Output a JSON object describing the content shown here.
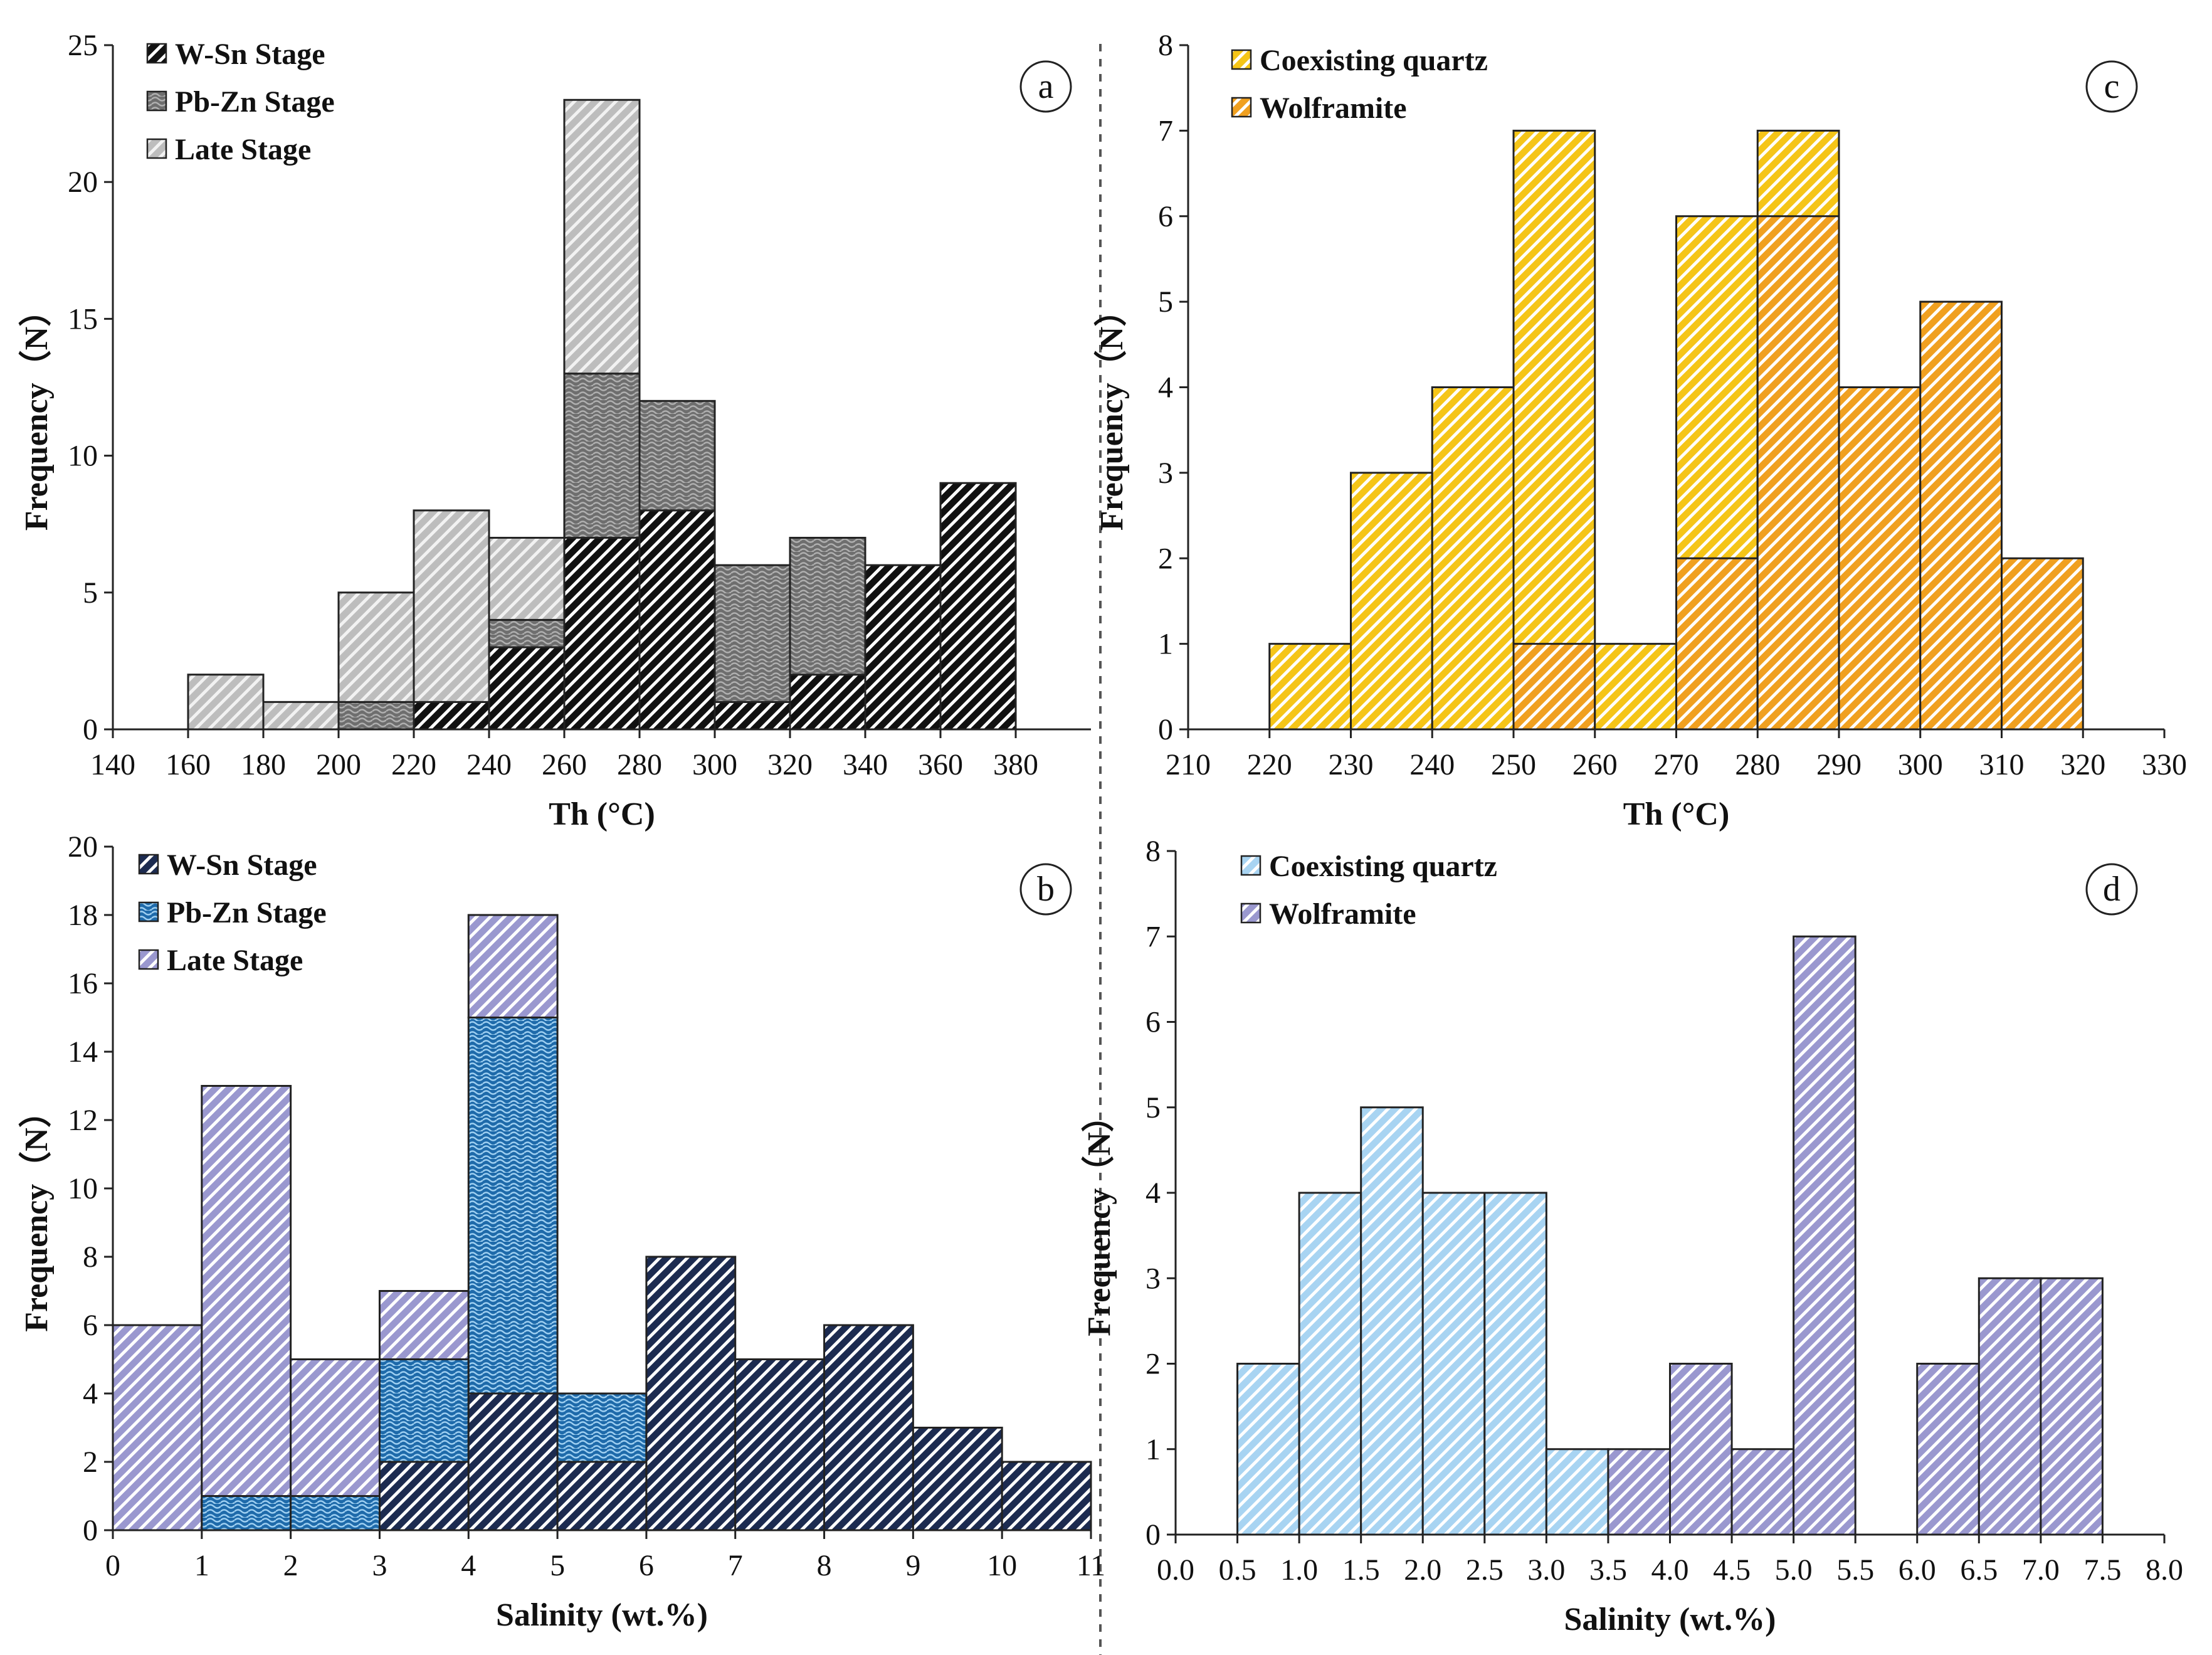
{
  "figure": {
    "divider": "dashed vertical separator"
  },
  "chart_data": [
    {
      "id": "a",
      "type": "bar",
      "stacked": true,
      "panel_label": "a",
      "xlabel": "Th (°C)",
      "ylabel": "Frequency（N）",
      "xlim": [
        140,
        400
      ],
      "ylim": [
        0,
        25
      ],
      "xticks": [
        140,
        160,
        180,
        200,
        220,
        240,
        260,
        280,
        300,
        320,
        340,
        360,
        380
      ],
      "yticks": [
        0,
        5,
        10,
        15,
        20,
        25
      ],
      "bin_width": 20,
      "bin_starts": [
        160,
        180,
        200,
        220,
        240,
        260,
        280,
        300,
        320,
        340,
        360
      ],
      "series": [
        {
          "name": "W-Sn Stage",
          "values": [
            0,
            0,
            0,
            1,
            3,
            7,
            8,
            1,
            2,
            6,
            9
          ],
          "color": "#111111",
          "stripe": "#ffffff",
          "pattern": "diag"
        },
        {
          "name": "Pb-Zn Stage",
          "values": [
            0,
            0,
            1,
            0,
            1,
            6,
            4,
            5,
            5,
            0,
            0
          ],
          "color": "#6e6e6e",
          "stripe": "#b0b0b0",
          "pattern": "wave"
        },
        {
          "name": "Late Stage",
          "values": [
            2,
            1,
            4,
            7,
            3,
            10,
            0,
            0,
            0,
            0,
            0
          ],
          "color": "#bdbdbd",
          "stripe": "#f2f2f2",
          "pattern": "diag"
        }
      ],
      "legend_position": "top-left"
    },
    {
      "id": "b",
      "type": "bar",
      "stacked": true,
      "panel_label": "b",
      "xlabel": "Salinity (wt.%)",
      "ylabel": "Frequency（N）",
      "xlim": [
        0,
        11
      ],
      "ylim": [
        0,
        20
      ],
      "xticks": [
        0,
        1,
        2,
        3,
        4,
        5,
        6,
        7,
        8,
        9,
        10,
        11
      ],
      "yticks": [
        0,
        2,
        4,
        6,
        8,
        10,
        12,
        14,
        16,
        18,
        20
      ],
      "bin_width": 1,
      "bin_starts": [
        0,
        1,
        2,
        3,
        4,
        5,
        6,
        7,
        8,
        9,
        10
      ],
      "series": [
        {
          "name": "W-Sn Stage",
          "values": [
            0,
            0,
            0,
            2,
            4,
            2,
            8,
            5,
            6,
            3,
            2
          ],
          "color": "#1c2b50",
          "stripe": "#ffffff",
          "pattern": "diag"
        },
        {
          "name": "Pb-Zn Stage",
          "values": [
            0,
            1,
            1,
            3,
            11,
            2,
            0,
            0,
            0,
            0,
            0
          ],
          "color": "#1e6aaa",
          "stripe": "#9fd0f2",
          "pattern": "wave"
        },
        {
          "name": "Late Stage",
          "values": [
            6,
            12,
            4,
            2,
            3,
            0,
            0,
            0,
            0,
            0,
            0
          ],
          "color": "#9a98cf",
          "stripe": "#ffffff",
          "pattern": "diag"
        }
      ],
      "legend_position": "top-left"
    },
    {
      "id": "c",
      "type": "bar",
      "stacked": false,
      "panel_label": "c",
      "xlabel": "Th (°C)",
      "ylabel": "Frequency（N）",
      "xlim": [
        210,
        330
      ],
      "ylim": [
        0,
        8
      ],
      "xticks": [
        210,
        220,
        230,
        240,
        250,
        260,
        270,
        280,
        290,
        300,
        310,
        320,
        330
      ],
      "yticks": [
        0,
        1,
        2,
        3,
        4,
        5,
        6,
        7,
        8
      ],
      "bin_width": 10,
      "bin_starts": [
        220,
        230,
        240,
        250,
        260,
        270,
        280,
        290,
        300,
        310
      ],
      "series": [
        {
          "name": "Coexisting quartz",
          "values": [
            1,
            3,
            4,
            7,
            1,
            6,
            7,
            0,
            0,
            0
          ],
          "color": "#f5c518",
          "stripe": "#ffffff",
          "pattern": "diag"
        },
        {
          "name": "Wolframite",
          "values": [
            0,
            0,
            0,
            1,
            0,
            2,
            6,
            4,
            5,
            2
          ],
          "color": "#f0a020",
          "stripe": "#ffffff",
          "pattern": "diag"
        }
      ],
      "legend_position": "top-left"
    },
    {
      "id": "d",
      "type": "bar",
      "stacked": false,
      "panel_label": "d",
      "xlabel": "Salinity (wt.%)",
      "ylabel": "Frequency（N）",
      "xlim": [
        0,
        8
      ],
      "ylim": [
        0,
        8
      ],
      "xticks": [
        "0.0",
        "0.5",
        "1.0",
        "1.5",
        "2.0",
        "2.5",
        "3.0",
        "3.5",
        "4.0",
        "4.5",
        "5.0",
        "5.5",
        "6.0",
        "6.5",
        "7.0",
        "7.5",
        "8.0"
      ],
      "yticks": [
        0,
        1,
        2,
        3,
        4,
        5,
        6,
        7,
        8
      ],
      "bin_width": 0.5,
      "bin_starts": [
        0.5,
        1.0,
        1.5,
        2.0,
        2.5,
        3.0,
        3.5,
        4.0,
        4.5,
        5.0,
        5.5,
        6.0,
        6.5,
        7.0
      ],
      "series": [
        {
          "name": "Coexisting quartz",
          "values": [
            2,
            4,
            5,
            4,
            4,
            1,
            0,
            0,
            0,
            0,
            0,
            0,
            0,
            0
          ],
          "color": "#a8d4f2",
          "stripe": "#ffffff",
          "pattern": "diag"
        },
        {
          "name": "Wolframite",
          "values": [
            0,
            0,
            0,
            0,
            0,
            0,
            1,
            2,
            1,
            7,
            0,
            2,
            3,
            3
          ],
          "color": "#9a98cf",
          "stripe": "#ffffff",
          "pattern": "diag"
        }
      ],
      "legend_position": "top-left"
    }
  ]
}
